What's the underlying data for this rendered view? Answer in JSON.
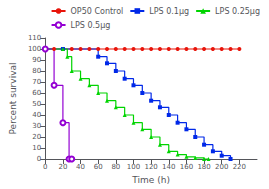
{
  "chart_data": {
    "type": "step",
    "xlabel": "Time (h)",
    "ylabel": "Percent survival",
    "xlim": [
      0,
      240
    ],
    "ylim": [
      0,
      110
    ],
    "xticks": [
      0,
      20,
      40,
      60,
      80,
      100,
      120,
      140,
      160,
      180,
      200,
      220
    ],
    "yticks": [
      0,
      10,
      20,
      30,
      40,
      50,
      60,
      70,
      80,
      90,
      100,
      110
    ],
    "grid": false,
    "legend": "upper right",
    "series": [
      {
        "name": "OP50 Control",
        "color": "#e8140a",
        "marker": "circle",
        "x": [
          0,
          10,
          20,
          30,
          40,
          50,
          60,
          70,
          80,
          90,
          100,
          110,
          120,
          130,
          140,
          150,
          160,
          170,
          180,
          190,
          200,
          210,
          220
        ],
        "values": [
          100,
          100,
          100,
          100,
          100,
          100,
          100,
          100,
          100,
          100,
          100,
          100,
          100,
          100,
          100,
          100,
          100,
          100,
          100,
          100,
          100,
          100,
          100
        ]
      },
      {
        "name": "LPS 0.1μg",
        "color": "#0028e8",
        "marker": "square",
        "x": [
          0,
          20,
          60,
          70,
          80,
          90,
          100,
          110,
          120,
          130,
          140,
          150,
          160,
          170,
          180,
          190,
          200,
          210
        ],
        "values": [
          100,
          100,
          93,
          87,
          80,
          73,
          67,
          60,
          53,
          47,
          40,
          33,
          27,
          20,
          13,
          7,
          3,
          0
        ]
      },
      {
        "name": "LPS 0.25μg",
        "color": "#00d400",
        "marker": "triangle",
        "x": [
          0,
          20,
          25,
          30,
          40,
          50,
          60,
          70,
          80,
          90,
          100,
          110,
          120,
          130,
          140,
          150,
          160,
          170,
          180,
          185
        ],
        "values": [
          100,
          100,
          93,
          80,
          73,
          67,
          60,
          53,
          47,
          40,
          33,
          27,
          20,
          13,
          7,
          4,
          2,
          1,
          0,
          0
        ]
      },
      {
        "name": "LPS 0.5μg",
        "color": "#9400d3",
        "marker": "open circle",
        "x": [
          0,
          10,
          20,
          27,
          30
        ],
        "values": [
          100,
          67,
          33,
          0,
          0
        ]
      }
    ]
  }
}
